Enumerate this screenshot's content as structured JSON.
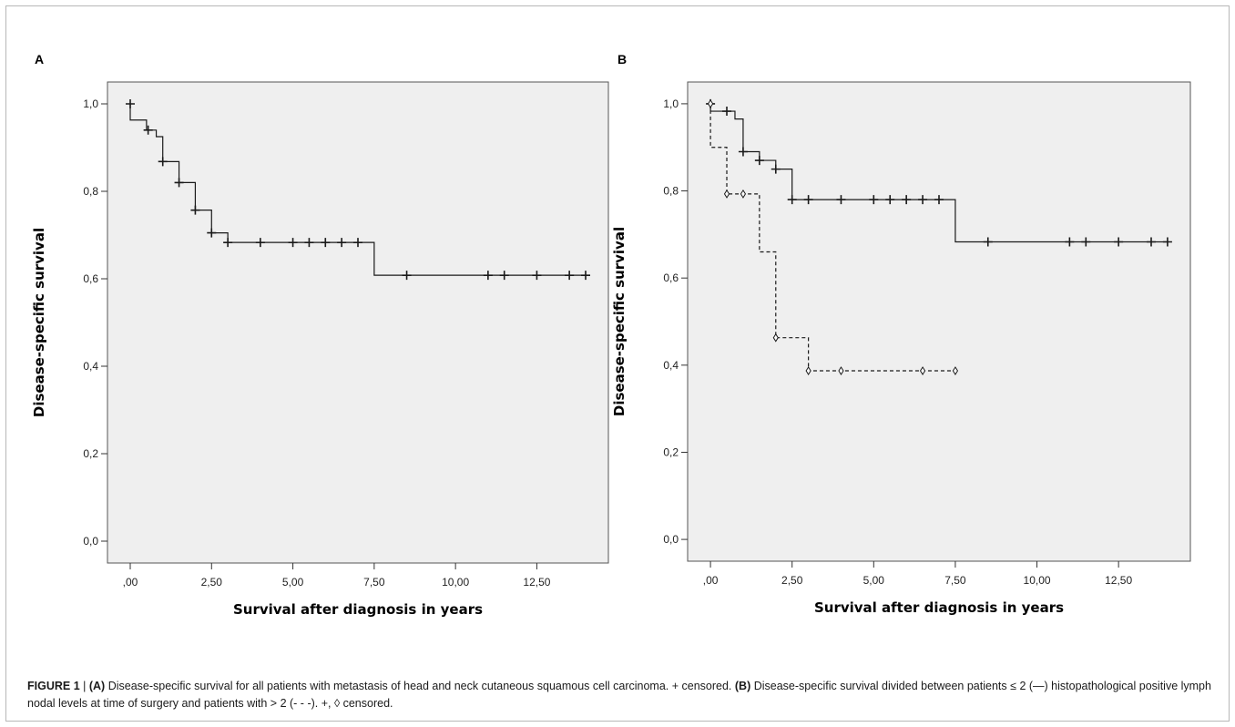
{
  "figure": {
    "caption_fig_label": "FIGURE 1",
    "caption_sep": " | ",
    "caption_A_label": "(A)",
    "caption_A_text": " Disease-specific survival for all patients with metastasis of head and neck cutaneous squamous cell carcinoma. + censored. ",
    "caption_B_label": "(B)",
    "caption_B_text": " Disease-specific survival divided between patients ≤ 2 (—) histopathological positive lymph nodal levels at time of surgery and patients with > 2 (- - -). +, ◊ censored."
  },
  "chart_data": [
    {
      "panel": "A",
      "type": "line",
      "step": true,
      "xlabel": "Survival after diagnosis in years",
      "ylabel": "Disease-specific survival",
      "xlim": [
        -0.7,
        14.7
      ],
      "ylim": [
        -0.05,
        1.05
      ],
      "x_ticks": [
        0,
        2.5,
        5,
        7.5,
        10,
        12.5
      ],
      "x_tick_labels": [
        ",00",
        "2,50",
        "5,00",
        "7,50",
        "10,00",
        "12,50"
      ],
      "y_ticks": [
        0,
        0.2,
        0.4,
        0.6,
        0.8,
        1.0
      ],
      "y_tick_labels": [
        "0,0",
        "0,2",
        "0,4",
        "0,6",
        "0,8",
        "1,0"
      ],
      "grid": false,
      "background": "#efefef",
      "series": [
        {
          "style": "solid",
          "marker": "+",
          "steps": [
            [
              0,
              1.0
            ],
            [
              0,
              0.963
            ],
            [
              0.5,
              0.94
            ],
            [
              0.8,
              0.925
            ],
            [
              1.0,
              0.868
            ],
            [
              1.5,
              0.82
            ],
            [
              2.0,
              0.757
            ],
            [
              2.5,
              0.705
            ],
            [
              3.0,
              0.683
            ],
            [
              7.5,
              0.608
            ],
            [
              14.0,
              0.608
            ]
          ],
          "censored": [
            [
              0,
              1.0
            ],
            [
              0.55,
              0.94
            ],
            [
              1.0,
              0.868
            ],
            [
              1.5,
              0.82
            ],
            [
              2.0,
              0.757
            ],
            [
              2.5,
              0.705
            ],
            [
              3.0,
              0.683
            ],
            [
              4.0,
              0.683
            ],
            [
              5.0,
              0.683
            ],
            [
              5.5,
              0.683
            ],
            [
              6.0,
              0.683
            ],
            [
              6.5,
              0.683
            ],
            [
              7.0,
              0.683
            ],
            [
              8.5,
              0.608
            ],
            [
              11.0,
              0.608
            ],
            [
              11.5,
              0.608
            ],
            [
              12.5,
              0.608
            ],
            [
              13.5,
              0.608
            ],
            [
              14.0,
              0.608
            ]
          ]
        }
      ]
    },
    {
      "panel": "B",
      "type": "line",
      "step": true,
      "xlabel": "Survival after diagnosis in years",
      "ylabel": "Disease-specific survival",
      "xlim": [
        -0.7,
        14.7
      ],
      "ylim": [
        -0.05,
        1.05
      ],
      "x_ticks": [
        0,
        2.5,
        5,
        7.5,
        10,
        12.5
      ],
      "x_tick_labels": [
        ",00",
        "2,50",
        "5,00",
        "7,50",
        "10,00",
        "12,50"
      ],
      "y_ticks": [
        0,
        0.2,
        0.4,
        0.6,
        0.8,
        1.0
      ],
      "y_tick_labels": [
        "0,0",
        "0,2",
        "0,4",
        "0,6",
        "0,8",
        "1,0"
      ],
      "grid": false,
      "background": "#efefef",
      "series": [
        {
          "style": "solid",
          "marker": "+",
          "steps": [
            [
              0,
              1.0
            ],
            [
              0,
              0.983
            ],
            [
              0.75,
              0.965
            ],
            [
              1.0,
              0.89
            ],
            [
              1.5,
              0.87
            ],
            [
              2.0,
              0.85
            ],
            [
              2.5,
              0.78
            ],
            [
              7.5,
              0.683
            ],
            [
              14.0,
              0.683
            ]
          ],
          "censored": [
            [
              0,
              1.0
            ],
            [
              0.5,
              0.983
            ],
            [
              1.0,
              0.89
            ],
            [
              1.5,
              0.87
            ],
            [
              2.0,
              0.85
            ],
            [
              2.5,
              0.78
            ],
            [
              3.0,
              0.78
            ],
            [
              4.0,
              0.78
            ],
            [
              5.0,
              0.78
            ],
            [
              5.5,
              0.78
            ],
            [
              6.0,
              0.78
            ],
            [
              6.5,
              0.78
            ],
            [
              7.0,
              0.78
            ],
            [
              8.5,
              0.683
            ],
            [
              11.0,
              0.683
            ],
            [
              11.5,
              0.683
            ],
            [
              12.5,
              0.683
            ],
            [
              13.5,
              0.683
            ],
            [
              14.0,
              0.683
            ]
          ]
        },
        {
          "style": "dashed",
          "marker": "diamond",
          "steps": [
            [
              0,
              1.0
            ],
            [
              0,
              0.9
            ],
            [
              0.5,
              0.793
            ],
            [
              1.5,
              0.66
            ],
            [
              2.0,
              0.463
            ],
            [
              3.0,
              0.387
            ],
            [
              7.5,
              0.387
            ]
          ],
          "censored": [
            [
              0,
              1.0
            ],
            [
              0.5,
              0.793
            ],
            [
              1.0,
              0.793
            ],
            [
              2.0,
              0.463
            ],
            [
              3.0,
              0.387
            ],
            [
              4.0,
              0.387
            ],
            [
              6.5,
              0.387
            ],
            [
              7.5,
              0.387
            ]
          ]
        }
      ]
    }
  ]
}
